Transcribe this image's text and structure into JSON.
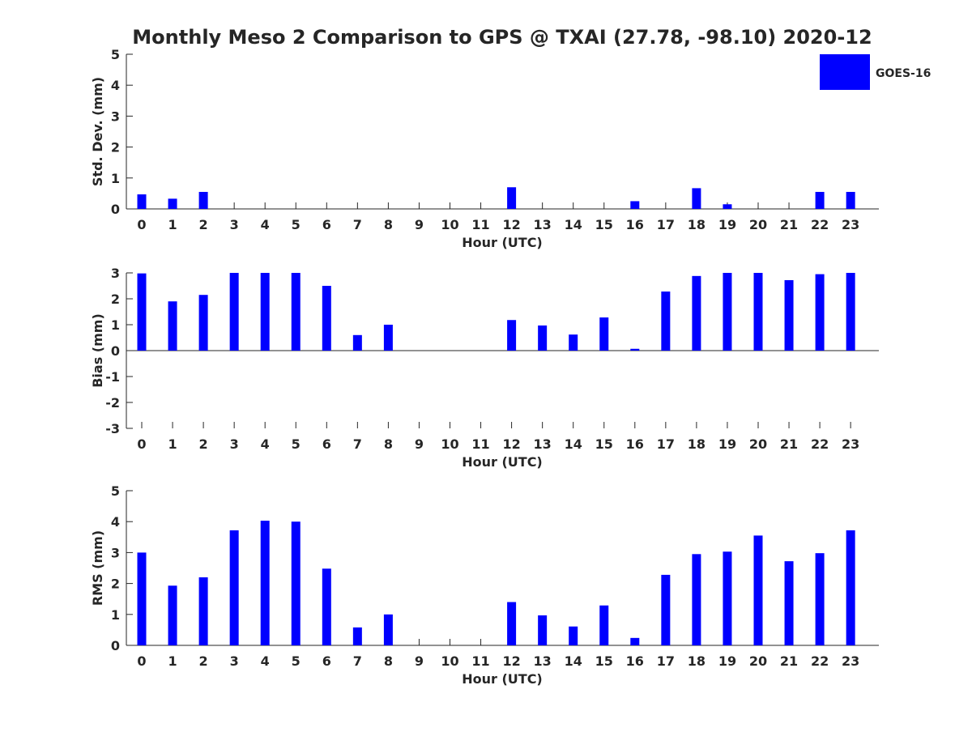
{
  "figure": {
    "title": "Monthly Meso 2 Comparison to GPS @ TXAI (27.78, -98.10) 2020-12"
  },
  "legend": {
    "placement": "top-right",
    "entries": [
      {
        "label": "GOES-16",
        "color": "#0000ff"
      }
    ]
  },
  "colors": {
    "bar": "#0000ff",
    "axis": "#262626"
  },
  "chart_data": [
    {
      "type": "bar",
      "xlabel": "Hour (UTC)",
      "ylabel": "Std. Dev. (mm)",
      "ylim": [
        0,
        5
      ],
      "yticks": [
        0,
        1,
        2,
        3,
        4,
        5
      ],
      "grid": false,
      "categories": [
        "0",
        "1",
        "2",
        "3",
        "4",
        "5",
        "6",
        "7",
        "8",
        "9",
        "10",
        "11",
        "12",
        "13",
        "14",
        "15",
        "16",
        "17",
        "18",
        "19",
        "20",
        "21",
        "22",
        "23"
      ],
      "series": [
        {
          "name": "GOES-16",
          "values": [
            0.47,
            0.33,
            0.55,
            0,
            0,
            0,
            0,
            0,
            0,
            0,
            0,
            0,
            0.7,
            0,
            0,
            0,
            0.25,
            0,
            0.67,
            0.15,
            0,
            0,
            0.55,
            0.55
          ]
        }
      ]
    },
    {
      "type": "bar",
      "xlabel": "Hour (UTC)",
      "ylabel": "Bias (mm)",
      "ylim": [
        -3,
        3
      ],
      "yticks": [
        -3,
        -2,
        -1,
        0,
        1,
        2,
        3
      ],
      "grid": false,
      "categories": [
        "0",
        "1",
        "2",
        "3",
        "4",
        "5",
        "6",
        "7",
        "8",
        "9",
        "10",
        "11",
        "12",
        "13",
        "14",
        "15",
        "16",
        "17",
        "18",
        "19",
        "20",
        "21",
        "22",
        "23"
      ],
      "series": [
        {
          "name": "GOES-16",
          "values": [
            2.98,
            1.9,
            2.15,
            3.0,
            3.0,
            3.0,
            2.5,
            0.6,
            1.0,
            0,
            0,
            0,
            1.18,
            0.97,
            0.62,
            1.28,
            0.07,
            2.28,
            2.88,
            3.0,
            3.0,
            2.72,
            2.95,
            3.0
          ]
        }
      ]
    },
    {
      "type": "bar",
      "xlabel": "Hour (UTC)",
      "ylabel": "RMS (mm)",
      "ylim": [
        0,
        5
      ],
      "yticks": [
        0,
        1,
        2,
        3,
        4,
        5
      ],
      "grid": false,
      "categories": [
        "0",
        "1",
        "2",
        "3",
        "4",
        "5",
        "6",
        "7",
        "8",
        "9",
        "10",
        "11",
        "12",
        "13",
        "14",
        "15",
        "16",
        "17",
        "18",
        "19",
        "20",
        "21",
        "22",
        "23"
      ],
      "series": [
        {
          "name": "GOES-16",
          "values": [
            3.0,
            1.93,
            2.2,
            3.72,
            4.03,
            4.0,
            2.48,
            0.58,
            1.0,
            0,
            0,
            0,
            1.4,
            0.97,
            0.61,
            1.29,
            0.24,
            2.28,
            2.95,
            3.03,
            3.55,
            2.72,
            2.98,
            3.72
          ]
        }
      ]
    }
  ]
}
